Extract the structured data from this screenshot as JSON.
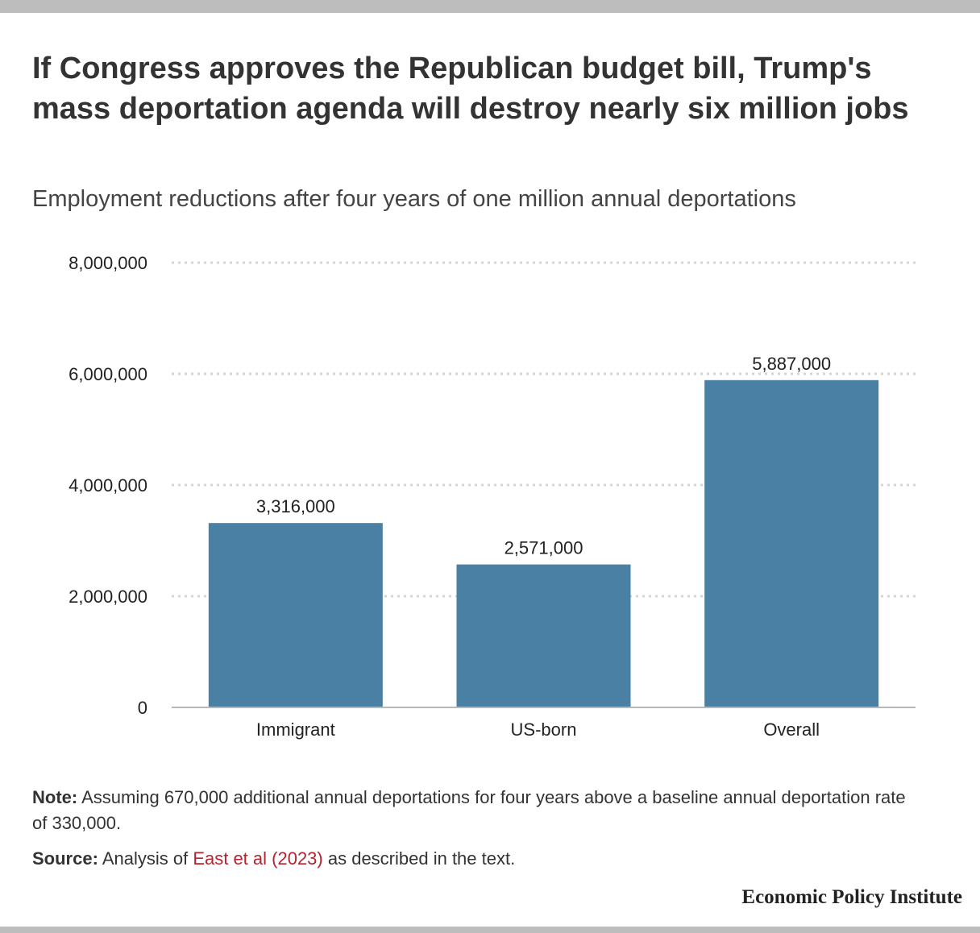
{
  "title": "If Congress approves the Republican budget bill, Trump's mass deportation agenda will destroy nearly six million jobs",
  "subtitle": "Employment reductions after four years of one million annual deportations",
  "note": {
    "label": "Note:",
    "text": " Assuming 670,000 additional annual deportations for four years above a baseline annual deportation rate of 330,000."
  },
  "source": {
    "label": "Source:",
    "prefix": " Analysis of ",
    "link_text": "East et al (2023)",
    "suffix": " as described in the text."
  },
  "brand": "Economic Policy Institute",
  "colors": {
    "bar": "#4a80a3",
    "grid": "#d4d4d4",
    "link": "#b5232f"
  },
  "chart_data": {
    "type": "bar",
    "categories": [
      "Immigrant",
      "US-born",
      "Overall"
    ],
    "values": [
      3316000,
      2571000,
      5887000
    ],
    "value_labels": [
      "3,316,000",
      "2,571,000",
      "5,887,000"
    ],
    "ylim": [
      0,
      8000000
    ],
    "yticks": [
      0,
      2000000,
      4000000,
      6000000,
      8000000
    ],
    "ytick_labels": [
      "0",
      "2,000,000",
      "4,000,000",
      "6,000,000",
      "8,000,000"
    ],
    "grid": "dotted horizontal",
    "legend": "none"
  }
}
